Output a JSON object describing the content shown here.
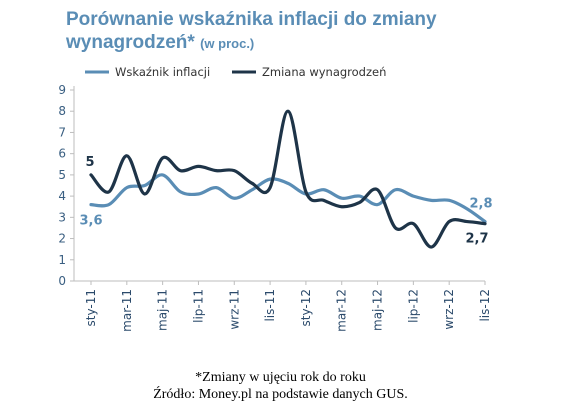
{
  "chart_data": {
    "type": "line",
    "title": "Porównanie wskaźnika inflacji do zmiany wynagrodzeń*",
    "title_unit": "(w proc.)",
    "ylim": [
      0,
      9
    ],
    "yticks": [
      "0",
      "1",
      "2",
      "3",
      "4",
      "5",
      "6",
      "7",
      "8",
      "9"
    ],
    "x_tick_labels": [
      "sty-11",
      "mar-11",
      "maj-11",
      "lip-11",
      "wrz-11",
      "lis-11",
      "sty-12",
      "mar-12",
      "maj-12",
      "lip-12",
      "wrz-12",
      "lis-12"
    ],
    "x": [
      "sty-11",
      "lut-11",
      "mar-11",
      "kwi-11",
      "maj-11",
      "cze-11",
      "lip-11",
      "sie-11",
      "wrz-11",
      "paź-11",
      "lis-11",
      "gru-11",
      "sty-12",
      "lut-12",
      "mar-12",
      "kwi-12",
      "maj-12",
      "cze-12",
      "lip-12",
      "sie-12",
      "wrz-12",
      "paź-12",
      "lis-12"
    ],
    "legend_position": "top",
    "grid": false,
    "series": [
      {
        "name": "Wskaźnik inflacji",
        "color": "#5a8db5",
        "values": [
          3.6,
          3.6,
          4.4,
          4.5,
          5.0,
          4.2,
          4.1,
          4.4,
          3.9,
          4.3,
          4.8,
          4.6,
          4.1,
          4.3,
          3.9,
          4.0,
          3.6,
          4.3,
          4.0,
          3.8,
          3.8,
          3.4,
          2.8
        ]
      },
      {
        "name": "Zmiana wynagrodzeń",
        "color": "#1e3448",
        "values": [
          5.0,
          4.2,
          5.9,
          4.1,
          5.8,
          5.2,
          5.4,
          5.2,
          5.2,
          4.6,
          4.4,
          8.0,
          4.2,
          3.8,
          3.5,
          3.7,
          4.3,
          2.5,
          2.7,
          1.6,
          2.8,
          2.8,
          2.7
        ]
      }
    ],
    "data_labels": [
      {
        "series": 1,
        "index": 0,
        "text": "5"
      },
      {
        "series": 0,
        "index": 0,
        "text": "3,6"
      },
      {
        "series": 0,
        "index": 22,
        "text": "2,8"
      },
      {
        "series": 1,
        "index": 22,
        "text": "2,7"
      }
    ]
  },
  "footer": {
    "note": "*Zmiany w ujęciu rok do roku",
    "source": "Źródło: Money.pl na podstawie danych GUS."
  }
}
